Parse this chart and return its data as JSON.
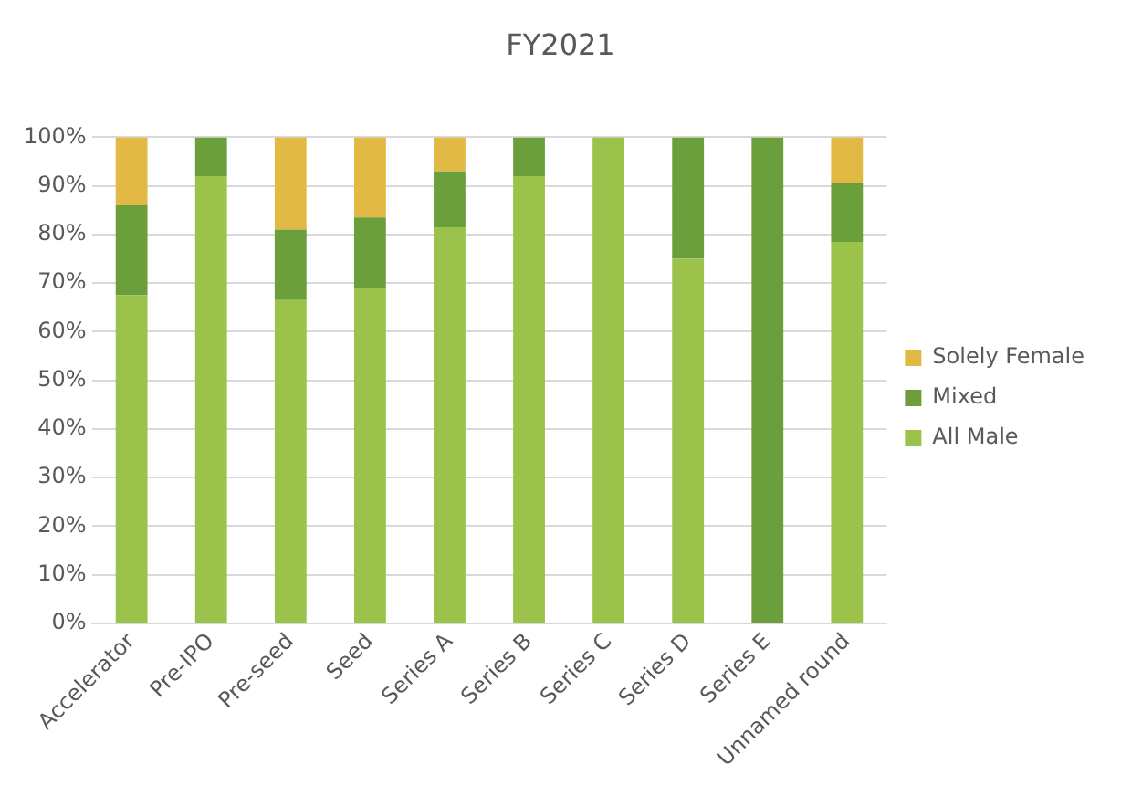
{
  "chart_data": {
    "type": "bar",
    "title": "FY2021",
    "stacked": true,
    "grid": "y",
    "legend": "right",
    "categories": [
      "Accelerator",
      "Pre-IPO",
      "Pre-seed",
      "Seed",
      "Series A",
      "Series B",
      "Series C",
      "Series D",
      "Series E",
      "Unnamed round"
    ],
    "series": [
      {
        "name": "All Male",
        "color": "#9bc24a",
        "values": [
          67.5,
          92,
          66.5,
          69,
          81.5,
          92,
          100,
          75,
          0,
          78.5
        ]
      },
      {
        "name": "Mixed",
        "color": "#6a9f3c",
        "values": [
          18.5,
          8,
          14.5,
          14.5,
          11.5,
          8,
          0,
          25,
          100,
          12
        ]
      },
      {
        "name": "Solely Female",
        "color": "#e2b945",
        "values": [
          14,
          0,
          19,
          16.5,
          7,
          0,
          0,
          0,
          0,
          9.5
        ]
      }
    ],
    "ylim": [
      0,
      100
    ],
    "yticks": [
      {
        "value": 0,
        "label": "0%"
      },
      {
        "value": 10,
        "label": "10%"
      },
      {
        "value": 20,
        "label": "20%"
      },
      {
        "value": 30,
        "label": "30%"
      },
      {
        "value": 40,
        "label": "40%"
      },
      {
        "value": 50,
        "label": "50%"
      },
      {
        "value": 60,
        "label": "60%"
      },
      {
        "value": 70,
        "label": "70%"
      },
      {
        "value": 80,
        "label": "80%"
      },
      {
        "value": 90,
        "label": "90%"
      },
      {
        "value": 100,
        "label": "100%"
      }
    ]
  }
}
